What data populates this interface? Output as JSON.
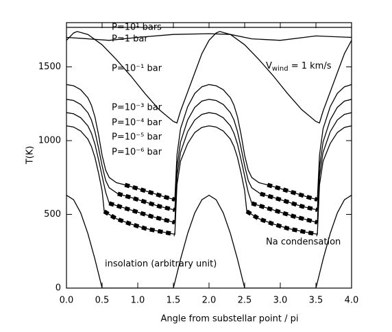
{
  "chart_data": {
    "type": "line",
    "xlabel": "Angle from substellar point / pi",
    "ylabel": "T(K)",
    "xlim": [
      0,
      4
    ],
    "ylim": [
      0,
      1800
    ],
    "xticks": [
      {
        "value": 0,
        "label": "0.0"
      },
      0.5,
      {
        "value": 1,
        "label": "1.0"
      },
      1.5,
      {
        "value": 2,
        "label": "2.0"
      },
      2.5,
      {
        "value": 3,
        "label": "3.0"
      },
      3.5,
      {
        "value": 4,
        "label": "4.0"
      }
    ],
    "yticks": [
      0,
      500,
      1000,
      1500
    ],
    "wind_label": {
      "main": "V",
      "sub": "wind",
      "rest": " = 1 km/s"
    },
    "condensation_label": "Na condensation",
    "series": [
      {
        "name": "P=10¹ bars",
        "color": "#000000",
        "x": [
          0,
          4
        ],
        "values": [
          1768,
          1768
        ]
      },
      {
        "name": "P=1 bar",
        "color": "#000000",
        "x": [
          0,
          0.3,
          0.6,
          1.0,
          1.5,
          2.0,
          2.3,
          2.6,
          3.0,
          3.5,
          4.0
        ],
        "values": [
          1700,
          1690,
          1680,
          1700,
          1720,
          1725,
          1720,
          1690,
          1680,
          1710,
          1700
        ]
      },
      {
        "name": "P=10⁻¹ bar",
        "color": "#000000",
        "x": [
          0,
          0.1,
          0.15,
          0.3,
          0.5,
          0.7,
          0.9,
          1.1,
          1.3,
          1.5,
          1.55,
          1.6,
          1.7,
          1.8,
          1.9,
          2.0,
          2.1,
          2.15,
          2.3,
          2.5,
          2.7,
          2.9,
          3.1,
          3.3,
          3.5,
          3.55,
          3.6,
          3.7,
          3.8,
          3.9,
          4.0
        ],
        "values": [
          1680,
          1730,
          1740,
          1720,
          1650,
          1550,
          1440,
          1320,
          1210,
          1130,
          1120,
          1200,
          1330,
          1460,
          1590,
          1680,
          1730,
          1740,
          1720,
          1650,
          1550,
          1440,
          1320,
          1210,
          1130,
          1120,
          1200,
          1330,
          1460,
          1590,
          1680
        ]
      },
      {
        "name": "P=10⁻³ bar",
        "color": "#000000",
        "x": [
          0,
          0.1,
          0.2,
          0.3,
          0.35,
          0.4,
          0.45,
          0.5,
          0.55,
          0.6,
          0.7,
          0.82,
          1.0,
          1.2,
          1.4,
          1.52,
          1.55,
          1.6,
          1.7,
          1.8,
          1.9,
          2.0,
          2.1,
          2.2,
          2.3,
          2.35,
          2.4,
          2.45,
          2.5,
          2.55,
          2.6,
          2.7,
          2.82,
          3.0,
          3.2,
          3.4,
          3.52,
          3.55,
          3.6,
          3.7,
          3.8,
          3.9,
          4.0
        ],
        "values": [
          1380,
          1372,
          1345,
          1290,
          1240,
          1160,
          1040,
          900,
          800,
          750,
          715,
          700,
          675,
          645,
          615,
          600,
          900,
          1080,
          1230,
          1320,
          1365,
          1380,
          1372,
          1345,
          1290,
          1240,
          1160,
          1040,
          900,
          800,
          750,
          715,
          700,
          675,
          645,
          615,
          600,
          900,
          1080,
          1230,
          1320,
          1365,
          1380
        ],
        "condensation": {
          "x": [
            0.82,
            1.0,
            1.2,
            1.4,
            1.52,
            null,
            2.82,
            3.0,
            3.2,
            3.4,
            3.52
          ],
          "values": [
            700,
            675,
            645,
            615,
            600,
            null,
            700,
            675,
            645,
            615,
            600
          ]
        }
      },
      {
        "name": "P=10⁻⁴ bar",
        "color": "#000000",
        "x": [
          0,
          0.1,
          0.2,
          0.3,
          0.35,
          0.4,
          0.45,
          0.5,
          0.55,
          0.6,
          0.72,
          0.9,
          1.1,
          1.3,
          1.52,
          1.55,
          1.6,
          1.7,
          1.8,
          1.9,
          2.0,
          2.1,
          2.2,
          2.3,
          2.35,
          2.4,
          2.45,
          2.5,
          2.55,
          2.6,
          2.72,
          2.9,
          3.1,
          3.3,
          3.52,
          3.55,
          3.6,
          3.7,
          3.8,
          3.9,
          4.0
        ],
        "values": [
          1280,
          1272,
          1245,
          1190,
          1140,
          1060,
          950,
          830,
          730,
          680,
          640,
          615,
          585,
          555,
          530,
          820,
          990,
          1140,
          1225,
          1268,
          1280,
          1272,
          1245,
          1190,
          1140,
          1060,
          950,
          830,
          730,
          680,
          640,
          615,
          585,
          555,
          530,
          820,
          990,
          1140,
          1225,
          1268,
          1280
        ],
        "condensation": {
          "x": [
            0.72,
            0.9,
            1.1,
            1.3,
            1.52,
            null,
            2.72,
            2.9,
            3.1,
            3.3,
            3.52
          ],
          "values": [
            640,
            615,
            585,
            555,
            530,
            null,
            640,
            615,
            585,
            555,
            530
          ]
        }
      },
      {
        "name": "P=10⁻⁵ bar",
        "color": "#000000",
        "x": [
          0,
          0.1,
          0.2,
          0.3,
          0.35,
          0.4,
          0.45,
          0.5,
          0.55,
          0.6,
          0.8,
          1.0,
          1.2,
          1.4,
          1.52,
          1.55,
          1.6,
          1.7,
          1.8,
          1.9,
          2.0,
          2.1,
          2.2,
          2.3,
          2.35,
          2.4,
          2.45,
          2.5,
          2.55,
          2.6,
          2.8,
          3.0,
          3.2,
          3.4,
          3.52,
          3.55,
          3.6,
          3.7,
          3.8,
          3.9,
          4.0
        ],
        "values": [
          1190,
          1182,
          1155,
          1100,
          1050,
          975,
          870,
          760,
          650,
          575,
          545,
          515,
          485,
          460,
          445,
          760,
          920,
          1060,
          1140,
          1178,
          1190,
          1182,
          1155,
          1100,
          1050,
          975,
          870,
          760,
          650,
          575,
          545,
          515,
          485,
          460,
          445,
          760,
          920,
          1060,
          1140,
          1178,
          1190
        ],
        "condensation": {
          "x": [
            0.6,
            0.8,
            1.0,
            1.2,
            1.4,
            1.52,
            null,
            2.6,
            2.8,
            3.0,
            3.2,
            3.4,
            3.52
          ],
          "values": [
            575,
            545,
            515,
            485,
            460,
            445,
            null,
            575,
            545,
            515,
            485,
            460,
            445
          ]
        }
      },
      {
        "name": "P=10⁻⁶ bar",
        "color": "#000000",
        "x": [
          0,
          0.1,
          0.2,
          0.3,
          0.35,
          0.4,
          0.45,
          0.5,
          0.53,
          0.7,
          0.9,
          1.1,
          1.3,
          1.52,
          1.55,
          1.6,
          1.7,
          1.8,
          1.9,
          2.0,
          2.1,
          2.2,
          2.3,
          2.35,
          2.4,
          2.45,
          2.5,
          2.53,
          2.7,
          2.9,
          3.1,
          3.3,
          3.52,
          3.55,
          3.6,
          3.7,
          3.8,
          3.9,
          4.0
        ],
        "values": [
          1100,
          1092,
          1065,
          1010,
          960,
          885,
          780,
          660,
          520,
          470,
          435,
          405,
          385,
          365,
          700,
          860,
          980,
          1055,
          1090,
          1100,
          1092,
          1065,
          1010,
          960,
          885,
          780,
          660,
          520,
          470,
          435,
          405,
          385,
          365,
          700,
          860,
          980,
          1055,
          1090,
          1100
        ],
        "condensation": {
          "x": [
            0.53,
            0.7,
            0.9,
            1.1,
            1.3,
            1.52,
            null,
            2.53,
            2.7,
            2.9,
            3.1,
            3.3,
            3.52
          ],
          "values": [
            520,
            470,
            435,
            405,
            385,
            365,
            null,
            520,
            470,
            435,
            405,
            385,
            365
          ]
        }
      },
      {
        "name": "insolation (arbitrary unit)",
        "color": "#000000",
        "x": [
          0,
          0.1,
          0.2,
          0.3,
          0.4,
          0.5,
          1.5,
          1.6,
          1.7,
          1.8,
          1.9,
          2.0,
          2.1,
          2.2,
          2.3,
          2.4,
          2.5,
          3.5,
          3.6,
          3.7,
          3.8,
          3.9,
          4.0
        ],
        "values": [
          630,
          599,
          510,
          370,
          195,
          0,
          0,
          195,
          370,
          510,
          599,
          630,
          599,
          510,
          370,
          195,
          0,
          0,
          195,
          370,
          510,
          599,
          630
        ]
      }
    ]
  }
}
